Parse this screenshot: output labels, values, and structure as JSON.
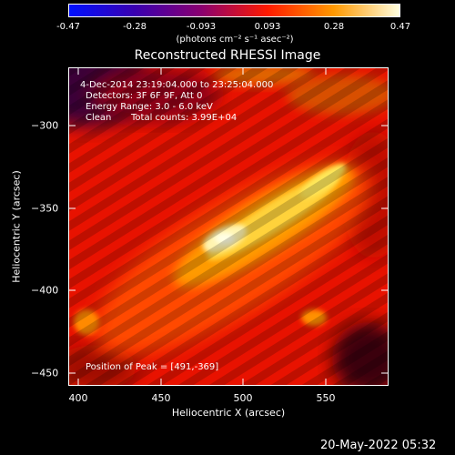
{
  "colorbar": {
    "tick_labels": [
      "-0.47",
      "-0.28",
      "-0.093",
      "0.093",
      "0.28",
      "0.47"
    ],
    "unit_label": "(photons cm⁻² s⁻¹ asec⁻²)",
    "palette": [
      "#0010ff",
      "#3a00b0",
      "#8a0070",
      "#ff1a00",
      "#ff9900",
      "#ffffe0"
    ]
  },
  "plot": {
    "title": "Reconstructed RHESSI Image",
    "x_axis_label": "Heliocentric X (arcsec)",
    "y_axis_label": "Heliocentric Y (arcsec)",
    "x_ticks": [
      "400",
      "450",
      "500",
      "550"
    ],
    "y_ticks": [
      "−300",
      "−350",
      "−400",
      "−450"
    ]
  },
  "info": {
    "time_range": "4-Dec-2014 23:19:04.000 to 23:25:04.000",
    "detectors": "Detectors: 3F 6F 9F, Att 0",
    "energy_range": "Energy Range: 3.0 - 6.0 keV",
    "clean_label": "Clean",
    "total_counts": "Total counts: 3.99E+04",
    "peak_position": "Position of Peak = [491,-369]"
  },
  "footer": {
    "date": "20-May-2022 05:32"
  }
}
